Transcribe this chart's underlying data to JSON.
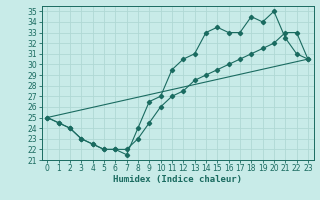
{
  "title": "",
  "xlabel": "Humidex (Indice chaleur)",
  "xlim": [
    -0.5,
    23.5
  ],
  "ylim": [
    21,
    35.5
  ],
  "xticks": [
    0,
    1,
    2,
    3,
    4,
    5,
    6,
    7,
    8,
    9,
    10,
    11,
    12,
    13,
    14,
    15,
    16,
    17,
    18,
    19,
    20,
    21,
    22,
    23
  ],
  "yticks": [
    21,
    22,
    23,
    24,
    25,
    26,
    27,
    28,
    29,
    30,
    31,
    32,
    33,
    34,
    35
  ],
  "bg_color": "#c8ebe8",
  "line_color": "#1a6b60",
  "grid_color": "#b0d8d4",
  "line1_x": [
    0,
    1,
    2,
    3,
    4,
    5,
    6,
    7,
    8,
    9,
    10,
    11,
    12,
    13,
    14,
    15,
    16,
    17,
    18,
    19,
    20,
    21,
    22,
    23
  ],
  "line1_y": [
    25,
    24.5,
    24,
    23,
    22.5,
    22,
    22,
    21.5,
    24,
    26.5,
    27,
    29.5,
    30.5,
    31,
    33,
    33.5,
    33,
    33,
    34.5,
    34,
    35,
    32.5,
    31,
    30.5
  ],
  "line2_x": [
    0,
    1,
    2,
    3,
    4,
    5,
    6,
    7,
    8,
    9,
    10,
    11,
    12,
    13,
    14,
    15,
    16,
    17,
    18,
    19,
    20,
    21,
    22,
    23
  ],
  "line2_y": [
    25,
    24.5,
    24,
    23,
    22.5,
    22,
    22,
    22,
    23,
    24.5,
    26,
    27,
    27.5,
    28.5,
    29,
    29.5,
    30,
    30.5,
    31,
    31.5,
    32,
    33,
    33,
    30.5
  ],
  "line3_x": [
    0,
    23
  ],
  "line3_y": [
    25,
    30.5
  ],
  "marker": "D",
  "markersize": 2.2,
  "linewidth": 0.8,
  "tick_fontsize": 5.5,
  "xlabel_fontsize": 6.5
}
